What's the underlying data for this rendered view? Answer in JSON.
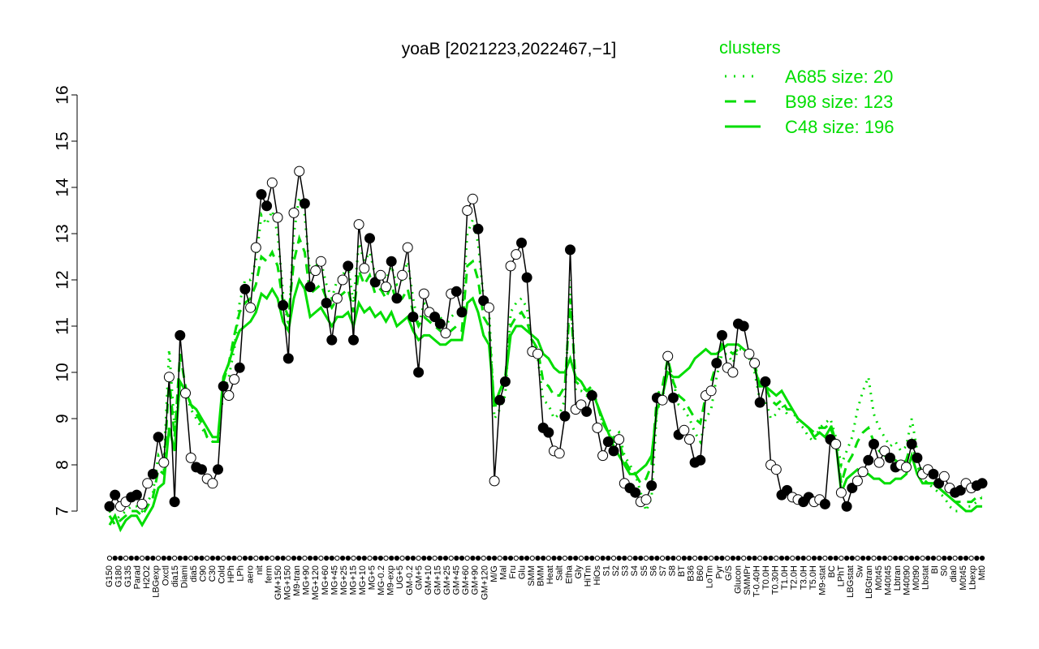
{
  "chart_data": {
    "type": "line",
    "title": "yoaB [2021223,2022467,−1]",
    "xlabel": "",
    "ylabel": "",
    "ylim": [
      7,
      16
    ],
    "yticks": [
      7,
      8,
      9,
      10,
      11,
      12,
      13,
      14,
      15,
      16
    ],
    "grid": false,
    "legend": {
      "title": "clusters",
      "position": "top-right",
      "entries": [
        {
          "label": "A685 size: 20",
          "style": "dotted"
        },
        {
          "label": "B98 size: 123",
          "style": "dashed"
        },
        {
          "label": "C48 size: 196",
          "style": "solid"
        }
      ]
    },
    "xtick_labels": [
      "G150",
      "G180",
      "G135",
      "Parad",
      "H2O2",
      "LBGexp",
      "Oxctl",
      "dia15",
      "Diami",
      "dia5",
      "C90",
      "C30",
      "Cold",
      "HPh",
      "LPh",
      "aero",
      "nit",
      "ferm",
      "GM+150",
      "MG+150",
      "M9-tran",
      "MG+90",
      "MG+120",
      "MG+60",
      "MG+45",
      "MG+25",
      "MG+15",
      "MG+10",
      "MG+5",
      "MG-0.2",
      "M9-exp",
      "UG+5",
      "GM-0.2",
      "GM+5",
      "GM+10",
      "GM+15",
      "GM+25",
      "GM+45",
      "GM+60",
      "GM+90",
      "GM+120",
      "M/G",
      "Mal",
      "Fru",
      "Glu",
      "SMM",
      "BMM",
      "Heat",
      "Salt",
      "Etha",
      "Gly",
      "HiTm",
      "HiOs",
      "S1",
      "S2",
      "S3",
      "S4",
      "S5",
      "S6",
      "S7",
      "S8",
      "BT",
      "B36",
      "B60",
      "LoTm",
      "Pyr",
      "G/S",
      "Glucon",
      "SMMPr",
      "T-0.40H",
      "T0.0H",
      "T0.30H",
      "T1.0H",
      "T2.0H",
      "T3.0H",
      "T5.0H",
      "M9-stat",
      "BC",
      "LPhT",
      "LBGstat",
      "Sw",
      "LBGtran",
      "M0t45",
      "M40t45",
      "Lbtran",
      "M40t90",
      "M0t90",
      "Lbstat",
      "BI",
      "S0",
      "dia0",
      "M0t45",
      "Lbexp",
      "Mt0"
    ],
    "series_colors": {
      "profile": "#000000",
      "clusters": "#00dd00"
    },
    "series": [
      {
        "name": "",
        "role": "profile",
        "values": [
          7.1,
          7.35,
          7.1,
          7.2,
          7.3,
          7.35,
          7.15,
          7.6,
          7.8,
          8.6,
          8.05,
          9.9,
          7.2,
          10.8,
          9.55,
          8.15,
          7.95,
          7.9,
          7.7,
          7.6,
          7.9,
          9.7,
          9.5,
          9.85,
          10.1,
          11.8,
          11.4,
          12.7,
          13.85,
          13.6,
          14.1,
          13.35,
          11.45,
          10.3,
          13.45,
          14.35,
          13.65,
          11.85,
          12.2,
          12.4,
          11.5,
          10.7,
          11.6,
          12.0,
          12.3,
          10.7,
          13.2,
          12.25,
          12.9,
          11.95,
          12.1,
          11.85,
          12.4,
          11.6,
          12.1,
          12.7,
          11.2,
          10.0,
          11.7,
          11.3,
          11.2,
          11.05,
          10.85,
          11.7,
          11.75,
          11.3,
          13.5,
          13.75,
          13.1,
          11.55,
          11.4,
          7.65,
          9.4,
          9.8,
          12.3,
          12.55,
          12.8,
          12.05,
          10.45,
          10.4,
          8.8,
          8.7,
          8.3,
          8.25,
          9.05,
          12.65,
          9.2,
          9.3,
          9.15,
          9.5,
          8.8,
          8.2,
          8.5,
          8.3,
          8.55,
          7.6,
          7.5,
          7.4,
          7.2,
          7.25,
          7.55,
          9.45,
          9.4,
          10.35,
          9.45,
          8.65,
          8.75,
          8.55,
          8.05,
          8.1,
          9.5,
          9.6,
          10.2,
          10.8,
          10.1,
          10.0,
          11.05,
          11.0,
          10.4,
          10.2,
          9.35,
          9.8,
          8.0,
          7.9,
          7.35,
          7.45,
          7.3,
          7.25,
          7.2,
          7.3,
          7.2,
          7.25,
          7.15,
          8.55,
          8.45,
          7.4,
          7.1,
          7.5,
          7.65,
          7.85,
          8.1,
          8.45,
          8.05,
          8.3,
          8.15,
          7.95,
          8.0,
          7.95,
          8.45,
          8.15,
          7.8,
          7.9,
          7.8,
          7.6,
          7.75,
          7.5,
          7.4,
          7.45,
          7.6,
          7.5,
          7.55,
          7.6
        ]
      },
      {
        "name": "A685 size: 20",
        "role": "cluster",
        "style": "dotted",
        "values": [
          7.0,
          6.8,
          6.9,
          7.0,
          7.1,
          7.1,
          7.0,
          7.2,
          7.4,
          8.2,
          8.0,
          10.5,
          8.8,
          9.6,
          9.6,
          9.2,
          9.0,
          8.8,
          8.6,
          8.5,
          8.5,
          9.6,
          9.9,
          10.5,
          11.5,
          12.0,
          12.0,
          12.4,
          13.4,
          13.2,
          13.5,
          13.0,
          11.7,
          11.0,
          13.0,
          13.8,
          13.4,
          12.1,
          12.3,
          12.4,
          11.9,
          11.6,
          12.0,
          12.1,
          12.3,
          11.5,
          12.8,
          12.4,
          12.6,
          12.1,
          12.2,
          12.0,
          12.3,
          11.9,
          12.0,
          12.4,
          11.6,
          11.0,
          11.5,
          11.4,
          11.3,
          11.2,
          11.0,
          11.2,
          11.3,
          11.2,
          13.0,
          13.3,
          12.8,
          11.6,
          11.4,
          9.0,
          9.2,
          9.5,
          11.3,
          11.5,
          11.6,
          11.4,
          10.6,
          10.3,
          9.4,
          9.3,
          9.0,
          9.1,
          9.4,
          12.0,
          9.6,
          9.6,
          9.5,
          9.6,
          9.3,
          8.9,
          8.8,
          8.6,
          8.7,
          8.2,
          8.0,
          7.8,
          7.4,
          7.0,
          7.3,
          9.2,
          9.4,
          10.2,
          9.8,
          9.3,
          9.2,
          9.0,
          8.7,
          8.5,
          9.0,
          9.2,
          9.9,
          10.4,
          10.4,
          10.2,
          10.5,
          10.5,
          10.3,
          10.0,
          9.4,
          9.4,
          9.0,
          9.1,
          9.3,
          9.1,
          9.2,
          8.9,
          8.8,
          8.6,
          8.5,
          8.8,
          8.9,
          9.0,
          8.6,
          8.0,
          8.3,
          8.6,
          9.2,
          9.6,
          9.9,
          9.1,
          8.8,
          8.6,
          8.4,
          8.5,
          8.3,
          8.4,
          9.0,
          8.3,
          7.7,
          7.6,
          7.5,
          7.4,
          7.3,
          7.1,
          7.0,
          7.0,
          7.1,
          7.1,
          7.2,
          7.3
        ]
      },
      {
        "name": "B98 size: 123",
        "role": "cluster",
        "style": "dashed",
        "values": [
          6.9,
          6.7,
          6.8,
          6.9,
          7.0,
          7.0,
          6.9,
          7.1,
          7.3,
          7.9,
          7.8,
          9.9,
          8.6,
          10.4,
          9.7,
          9.3,
          9.1,
          8.9,
          8.6,
          8.5,
          8.5,
          9.8,
          10.2,
          10.8,
          11.3,
          11.5,
          11.6,
          11.9,
          12.5,
          12.4,
          12.6,
          12.3,
          11.5,
          11.2,
          12.4,
          12.9,
          12.6,
          11.7,
          11.8,
          11.9,
          11.6,
          11.4,
          11.6,
          11.7,
          11.8,
          11.3,
          12.2,
          11.9,
          12.1,
          11.7,
          11.8,
          11.6,
          11.9,
          11.5,
          11.6,
          11.8,
          11.3,
          11.0,
          11.2,
          11.1,
          11.0,
          10.9,
          10.8,
          10.9,
          11.0,
          10.9,
          12.3,
          12.4,
          12.0,
          11.2,
          11.0,
          9.2,
          9.6,
          9.9,
          11.0,
          11.2,
          11.3,
          11.1,
          10.7,
          10.5,
          9.8,
          9.7,
          9.5,
          9.5,
          9.7,
          11.6,
          9.8,
          9.7,
          9.6,
          9.7,
          9.3,
          8.9,
          8.7,
          8.5,
          8.5,
          8.1,
          7.9,
          7.8,
          7.6,
          7.7,
          8.0,
          9.5,
          9.7,
          10.3,
          9.8,
          9.5,
          9.4,
          9.2,
          9.0,
          8.9,
          9.5,
          9.8,
          10.2,
          10.6,
          10.5,
          10.4,
          10.5,
          10.5,
          10.4,
          10.2,
          9.7,
          9.7,
          9.4,
          9.3,
          9.4,
          9.2,
          9.2,
          9.0,
          8.9,
          8.8,
          8.7,
          8.8,
          8.8,
          8.9,
          8.5,
          7.6,
          8.0,
          8.2,
          8.5,
          8.7,
          8.8,
          8.5,
          8.3,
          8.2,
          8.1,
          8.1,
          8.0,
          8.1,
          8.5,
          8.0,
          7.7,
          7.6,
          7.6,
          7.5,
          7.4,
          7.3,
          7.2,
          7.2,
          7.2,
          7.2,
          7.3,
          7.3
        ]
      },
      {
        "name": "C48 size: 196",
        "role": "cluster",
        "style": "solid",
        "values": [
          6.7,
          6.9,
          6.6,
          6.8,
          6.9,
          6.9,
          6.7,
          6.9,
          7.1,
          7.5,
          7.6,
          8.8,
          8.3,
          9.8,
          9.6,
          9.3,
          9.2,
          9.0,
          8.8,
          8.6,
          8.6,
          9.9,
          10.2,
          10.6,
          10.9,
          11.0,
          11.1,
          11.3,
          11.7,
          11.6,
          11.8,
          11.6,
          11.1,
          10.9,
          11.6,
          12.0,
          11.8,
          11.2,
          11.3,
          11.4,
          11.2,
          11.0,
          11.2,
          11.2,
          11.3,
          11.0,
          11.5,
          11.3,
          11.4,
          11.2,
          11.3,
          11.1,
          11.3,
          11.0,
          11.1,
          11.2,
          10.9,
          10.7,
          10.8,
          10.8,
          10.7,
          10.6,
          10.6,
          10.7,
          10.7,
          10.7,
          11.5,
          11.6,
          11.3,
          10.8,
          10.6,
          9.3,
          9.6,
          9.8,
          10.8,
          11.0,
          11.0,
          10.9,
          10.8,
          10.7,
          10.4,
          10.3,
          10.1,
          10.0,
          10.0,
          10.3,
          9.9,
          9.8,
          9.6,
          9.6,
          9.3,
          9.0,
          8.7,
          8.4,
          8.2,
          8.0,
          7.8,
          7.8,
          7.9,
          8.0,
          8.2,
          9.2,
          9.5,
          10.0,
          9.9,
          9.9,
          10.0,
          10.1,
          10.3,
          10.4,
          10.5,
          10.4,
          10.4,
          10.5,
          10.6,
          10.6,
          10.6,
          10.5,
          10.4,
          10.1,
          9.7,
          9.7,
          9.6,
          9.5,
          9.6,
          9.4,
          9.2,
          9.0,
          8.9,
          8.8,
          8.6,
          8.7,
          8.6,
          8.8,
          8.5,
          7.4,
          7.7,
          7.8,
          7.9,
          7.8,
          7.8,
          7.7,
          7.7,
          7.6,
          7.6,
          7.7,
          7.7,
          7.8,
          8.2,
          7.8,
          7.6,
          7.6,
          7.6,
          7.5,
          7.4,
          7.3,
          7.2,
          7.1,
          7.0,
          7.0,
          7.1,
          7.1
        ]
      }
    ]
  }
}
